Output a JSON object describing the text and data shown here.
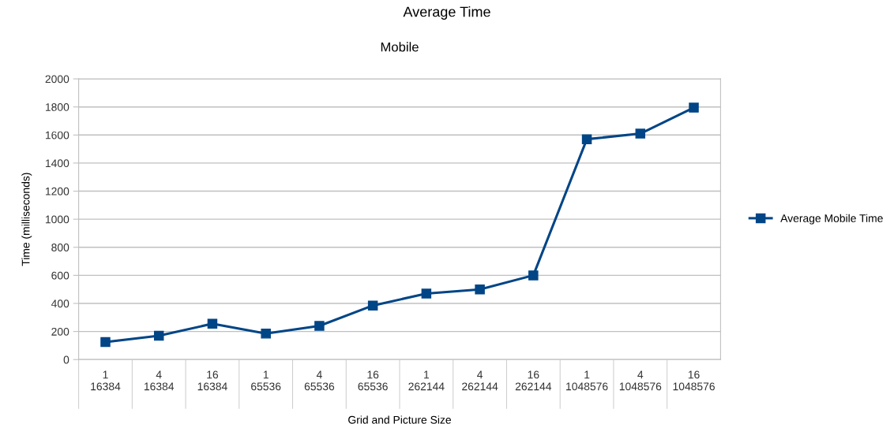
{
  "chart_data": {
    "type": "line",
    "title": "Average Time",
    "subtitle": "Mobile",
    "xlabel": "Grid and Picture Size",
    "ylabel": "Time (milliseconds)",
    "categories": [
      "1\n16384",
      "4\n16384",
      "16\n16384",
      "1\n65536",
      "4\n65536",
      "16\n65536",
      "1\n262144",
      "4\n262144",
      "16\n262144",
      "1\n1048576",
      "4\n1048576",
      "16\n1048576"
    ],
    "series": [
      {
        "name": "Average Mobile Time",
        "color": "#004586",
        "values": [
          125,
          170,
          255,
          185,
          240,
          385,
          470,
          500,
          600,
          1570,
          1610,
          1795
        ]
      }
    ],
    "ylim": [
      0,
      2000
    ],
    "yticks": [
      0,
      200,
      400,
      600,
      800,
      1000,
      1200,
      1400,
      1600,
      1800,
      2000
    ],
    "grid": "y",
    "legend": "right",
    "marker": "square",
    "line_style": "solid"
  }
}
